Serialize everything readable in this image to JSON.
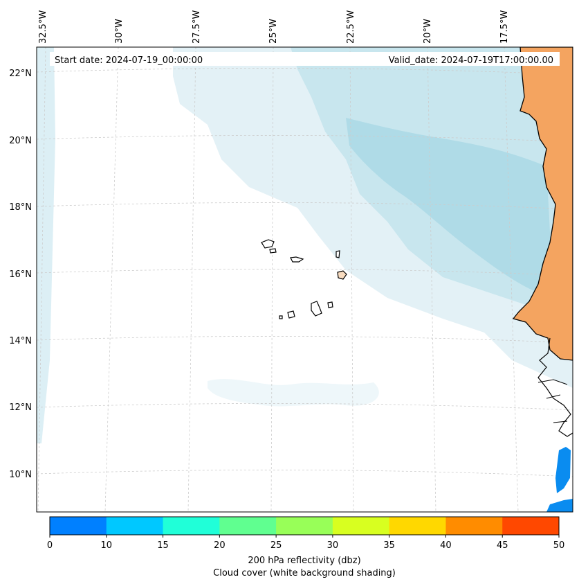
{
  "map": {
    "start_date": "Start date: 2024-07-19_00:00:00",
    "valid_date": "Valid_date: 2024-07-19T17:00:00.00",
    "lon_labels": [
      "32.5°W",
      "30°W",
      "27.5°W",
      "25°W",
      "22.5°W",
      "20°W",
      "17.5°W"
    ],
    "lat_labels": [
      "22°N",
      "20°N",
      "18°N",
      "16°N",
      "14°N",
      "12°N",
      "10°N"
    ],
    "region": "Cape Verde and West African coast"
  },
  "colorbar": {
    "ticks": [
      "0",
      "10",
      "15",
      "20",
      "25",
      "30",
      "35",
      "40",
      "45",
      "50"
    ],
    "colors": [
      "#0080ff",
      "#00c8ff",
      "#20ffd8",
      "#60ff90",
      "#98ff58",
      "#d8ff20",
      "#ffd800",
      "#ff8c00",
      "#ff4800"
    ],
    "label_line1": "200 hPa reflectivity (dbz)",
    "label_line2": "Cloud cover (white background shading)"
  },
  "colors": {
    "land": "#f4a460",
    "cloud_light": "#e8f4f7",
    "cloud_mid": "#c6e6ee",
    "cloud_dark": "#aedae6",
    "reflectivity_low": "#0a8cf0"
  }
}
